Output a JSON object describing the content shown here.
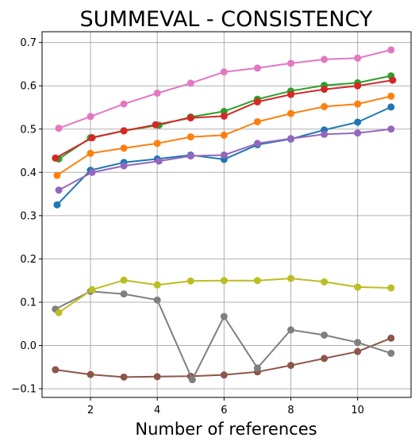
{
  "chart_data": {
    "type": "line",
    "title": "SUMMEVAL - CONSISTENCY",
    "xlabel": "Number of references",
    "ylabel": "",
    "xlim": [
      0.55,
      11.6
    ],
    "ylim": [
      -0.12,
      0.725
    ],
    "xticks": [
      2,
      4,
      6,
      8,
      10
    ],
    "xtick_labels": [
      "2",
      "4",
      "6",
      "8",
      "10"
    ],
    "yticks": [
      -0.1,
      0.0,
      0.1,
      0.2,
      0.3,
      0.4,
      0.5,
      0.6,
      0.7
    ],
    "ytick_labels": [
      "−0.1",
      "0.0",
      "0.1",
      "0.2",
      "0.3",
      "0.4",
      "0.5",
      "0.6",
      "0.7"
    ],
    "grid": true,
    "series": [
      {
        "color": "#1f77b4",
        "x": [
          1,
          2,
          3,
          4,
          5,
          6,
          7,
          8,
          9,
          10,
          11
        ],
        "values": [
          0.325,
          0.405,
          0.423,
          0.431,
          0.44,
          0.43,
          0.464,
          0.477,
          0.498,
          0.516,
          0.551
        ]
      },
      {
        "color": "#ff7f0e",
        "x": [
          1,
          2,
          3,
          4,
          5,
          6,
          7,
          8,
          9,
          10,
          11
        ],
        "values": [
          0.393,
          0.444,
          0.456,
          0.467,
          0.482,
          0.486,
          0.517,
          0.536,
          0.552,
          0.558,
          0.576
        ]
      },
      {
        "color": "#2ca02c",
        "x": [
          1.05,
          2,
          3,
          4.05,
          5,
          6,
          7,
          8,
          9,
          10,
          11
        ],
        "values": [
          0.431,
          0.48,
          0.496,
          0.509,
          0.528,
          0.541,
          0.569,
          0.588,
          0.601,
          0.607,
          0.623
        ]
      },
      {
        "color": "#d62728",
        "x": [
          0.95,
          2.05,
          3,
          3.95,
          5,
          6,
          7,
          8,
          9,
          10,
          11.05
        ],
        "values": [
          0.433,
          0.48,
          0.496,
          0.51,
          0.526,
          0.53,
          0.563,
          0.58,
          0.592,
          0.6,
          0.613
        ]
      },
      {
        "color": "#9467bd",
        "x": [
          1.05,
          2.05,
          3,
          4.05,
          5,
          6,
          7,
          8,
          9,
          10,
          11
        ],
        "values": [
          0.359,
          0.4,
          0.415,
          0.426,
          0.438,
          0.44,
          0.467,
          0.478,
          0.488,
          0.491,
          0.5
        ]
      },
      {
        "color": "#8c564b",
        "x": [
          0.95,
          2,
          3,
          4,
          5,
          6,
          7,
          8,
          9,
          10,
          11
        ],
        "values": [
          -0.056,
          -0.067,
          -0.073,
          -0.072,
          -0.071,
          -0.068,
          -0.061,
          -0.046,
          -0.03,
          -0.014,
          0.017
        ]
      },
      {
        "color": "#e377c2",
        "x": [
          1.05,
          2,
          3,
          4,
          5,
          6,
          7,
          8,
          9,
          10,
          11
        ],
        "values": [
          0.502,
          0.529,
          0.558,
          0.583,
          0.606,
          0.632,
          0.641,
          0.652,
          0.661,
          0.664,
          0.683
        ]
      },
      {
        "color": "#7f7f7f",
        "x": [
          0.95,
          2,
          3,
          4,
          5.05,
          6,
          7,
          8,
          9,
          10,
          11
        ],
        "values": [
          0.084,
          0.125,
          0.119,
          0.105,
          -0.079,
          0.067,
          -0.052,
          0.036,
          0.024,
          0.007,
          -0.018
        ]
      },
      {
        "color": "#bcbd22",
        "x": [
          1.05,
          2.05,
          3,
          4,
          5,
          6,
          7,
          8,
          9,
          10,
          11
        ],
        "values": [
          0.076,
          0.129,
          0.151,
          0.14,
          0.149,
          0.15,
          0.15,
          0.155,
          0.147,
          0.135,
          0.133
        ]
      }
    ]
  }
}
